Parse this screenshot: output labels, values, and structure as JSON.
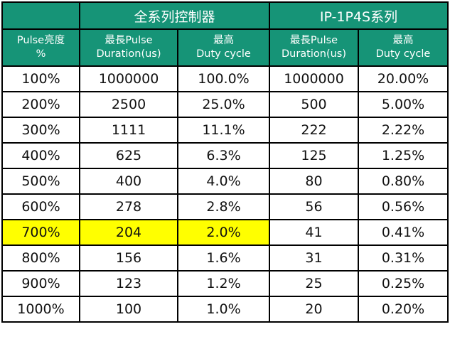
{
  "header": {
    "group_blank": "",
    "group_all": "全系列控制器",
    "group_ip": "IP-1P4S系列",
    "col_pulse_line1": "Pulse亮度",
    "col_pulse_line2": "%",
    "col_all_duration_line1": "最長Pulse",
    "col_all_duration_line2": "Duration(us)",
    "col_all_duty_line1": "最高",
    "col_all_duty_line2": "Duty cycle",
    "col_ip_duration_line1": "最長Pulse",
    "col_ip_duration_line2": "Duration(us)",
    "col_ip_duty_line1": "最高",
    "col_ip_duty_line2": "Duty cycle"
  },
  "rows": [
    {
      "pulse": "100%",
      "all_duration": "1000000",
      "all_duty": "100.0%",
      "ip_duration": "1000000",
      "ip_duty": "20.00%"
    },
    {
      "pulse": "200%",
      "all_duration": "2500",
      "all_duty": "25.0%",
      "ip_duration": "500",
      "ip_duty": "5.00%"
    },
    {
      "pulse": "300%",
      "all_duration": "1111",
      "all_duty": "11.1%",
      "ip_duration": "222",
      "ip_duty": "2.22%"
    },
    {
      "pulse": "400%",
      "all_duration": "625",
      "all_duty": "6.3%",
      "ip_duration": "125",
      "ip_duty": "1.25%"
    },
    {
      "pulse": "500%",
      "all_duration": "400",
      "all_duty": "4.0%",
      "ip_duration": "80",
      "ip_duty": "0.80%"
    },
    {
      "pulse": "600%",
      "all_duration": "278",
      "all_duty": "2.8%",
      "ip_duration": "56",
      "ip_duty": "0.56%"
    },
    {
      "pulse": "700%",
      "all_duration": "204",
      "all_duty": "2.0%",
      "ip_duration": "41",
      "ip_duty": "0.41%"
    },
    {
      "pulse": "800%",
      "all_duration": "156",
      "all_duty": "1.6%",
      "ip_duration": "31",
      "ip_duty": "0.31%"
    },
    {
      "pulse": "900%",
      "all_duration": "123",
      "all_duty": "1.2%",
      "ip_duration": "25",
      "ip_duty": "0.25%"
    },
    {
      "pulse": "1000%",
      "all_duration": "100",
      "all_duty": "1.0%",
      "ip_duration": "20",
      "ip_duty": "0.20%"
    }
  ],
  "colors": {
    "header_bg": "#169477",
    "highlight": "#ffff00"
  },
  "highlighted_row": "700%"
}
